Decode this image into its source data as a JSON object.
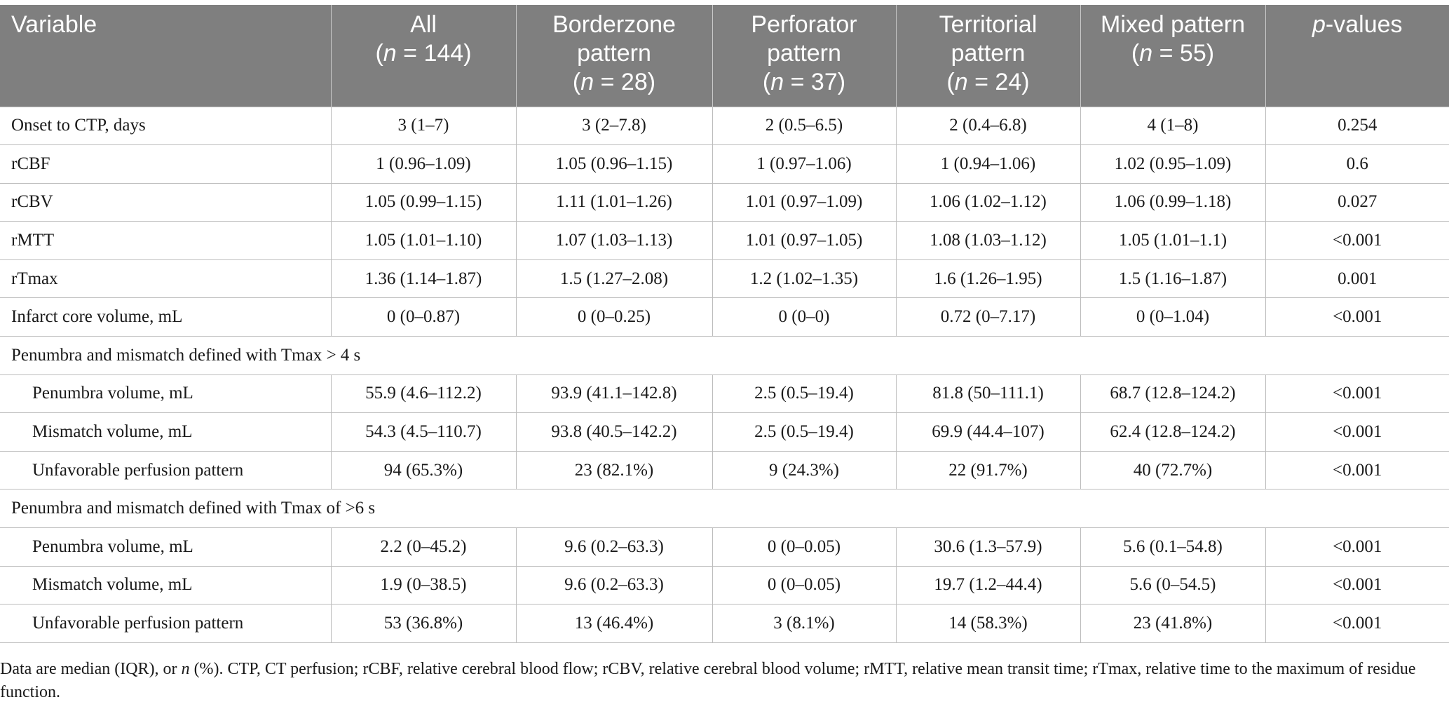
{
  "header": {
    "variable": "Variable",
    "columns": [
      {
        "name": "All",
        "n": "(n = 144)"
      },
      {
        "name": "Borderzone pattern",
        "n": "(n = 28)"
      },
      {
        "name": "Perforator pattern",
        "n": "(n = 37)"
      },
      {
        "name": "Territorial pattern",
        "n": "(n = 24)"
      },
      {
        "name": "Mixed pattern",
        "n": "(n = 55)"
      }
    ],
    "pvalues": "p-values"
  },
  "rows": [
    {
      "type": "data",
      "label": "Onset to CTP, days",
      "values": [
        "3 (1–7)",
        "3 (2–7.8)",
        "2 (0.5–6.5)",
        "2 (0.4–6.8)",
        "4 (1–8)",
        "0.254"
      ]
    },
    {
      "type": "data",
      "label": "rCBF",
      "values": [
        "1 (0.96–1.09)",
        "1.05 (0.96–1.15)",
        "1 (0.97–1.06)",
        "1 (0.94–1.06)",
        "1.02 (0.95–1.09)",
        "0.6"
      ]
    },
    {
      "type": "data",
      "label": "rCBV",
      "values": [
        "1.05 (0.99–1.15)",
        "1.11 (1.01–1.26)",
        "1.01 (0.97–1.09)",
        "1.06 (1.02–1.12)",
        "1.06 (0.99–1.18)",
        "0.027"
      ]
    },
    {
      "type": "data",
      "label": "rMTT",
      "values": [
        "1.05 (1.01–1.10)",
        "1.07 (1.03–1.13)",
        "1.01 (0.97–1.05)",
        "1.08 (1.03–1.12)",
        "1.05 (1.01–1.1)",
        "<0.001"
      ]
    },
    {
      "type": "data",
      "label": "rTmax",
      "values": [
        "1.36 (1.14–1.87)",
        "1.5 (1.27–2.08)",
        "1.2 (1.02–1.35)",
        "1.6 (1.26–1.95)",
        "1.5 (1.16–1.87)",
        "0.001"
      ]
    },
    {
      "type": "data",
      "label": "Infarct core volume, mL",
      "values": [
        "0 (0–0.87)",
        "0 (0–0.25)",
        "0 (0–0)",
        "0.72 (0–7.17)",
        "0 (0–1.04)",
        "<0.001"
      ]
    },
    {
      "type": "section",
      "label": "Penumbra and mismatch defined with Tmax > 4 s"
    },
    {
      "type": "sub",
      "label": "Penumbra volume, mL",
      "values": [
        "55.9 (4.6–112.2)",
        "93.9 (41.1–142.8)",
        "2.5 (0.5–19.4)",
        "81.8 (50–111.1)",
        "68.7 (12.8–124.2)",
        "<0.001"
      ]
    },
    {
      "type": "sub",
      "label": "Mismatch volume, mL",
      "values": [
        "54.3 (4.5–110.7)",
        "93.8 (40.5–142.2)",
        "2.5 (0.5–19.4)",
        "69.9 (44.4–107)",
        "62.4 (12.8–124.2)",
        "<0.001"
      ]
    },
    {
      "type": "sub",
      "label": "Unfavorable perfusion pattern",
      "values": [
        "94 (65.3%)",
        "23 (82.1%)",
        "9 (24.3%)",
        "22 (91.7%)",
        "40 (72.7%)",
        "<0.001"
      ]
    },
    {
      "type": "section",
      "label": "Penumbra and mismatch defined with Tmax of >6 s"
    },
    {
      "type": "sub",
      "label": "Penumbra volume, mL",
      "values": [
        "2.2 (0–45.2)",
        "9.6 (0.2–63.3)",
        "0 (0–0.05)",
        "30.6 (1.3–57.9)",
        "5.6 (0.1–54.8)",
        "<0.001"
      ]
    },
    {
      "type": "sub",
      "label": "Mismatch volume, mL",
      "values": [
        "1.9 (0–38.5)",
        "9.6 (0.2–63.3)",
        "0 (0–0.05)",
        "19.7 (1.2–44.4)",
        "5.6 (0–54.5)",
        "<0.001"
      ]
    },
    {
      "type": "sub",
      "label": "Unfavorable perfusion pattern",
      "values": [
        "53 (36.8%)",
        "13 (46.4%)",
        "3 (8.1%)",
        "14 (58.3%)",
        "23 (41.8%)",
        "<0.001"
      ]
    }
  ],
  "footnote": "Data are median (IQR), or n (%). CTP, CT perfusion; rCBF, relative cerebral blood flow; rCBV, relative cerebral blood volume; rMTT, relative mean transit time; rTmax, relative time to the maximum of residue function."
}
